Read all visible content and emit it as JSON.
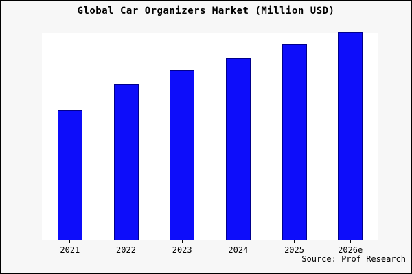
{
  "chart_data": {
    "type": "bar",
    "title": "Global Car Organizers Market (Million USD)",
    "categories": [
      "2021",
      "2022",
      "2023",
      "2024",
      "2025",
      "2026e"
    ],
    "values": [
      65,
      78,
      85,
      91,
      98,
      104
    ],
    "xlabel": "",
    "ylabel": "",
    "ylim": [
      0,
      104
    ],
    "y_axis_visible": false,
    "grid": false,
    "legend_position": "none",
    "bar_color": "#0d0dfa",
    "bar_edge_color": "#00008b",
    "figure_background": "#f7f7f7",
    "plot_background": "#ffffff"
  },
  "source_text": "Source: Prof Research"
}
